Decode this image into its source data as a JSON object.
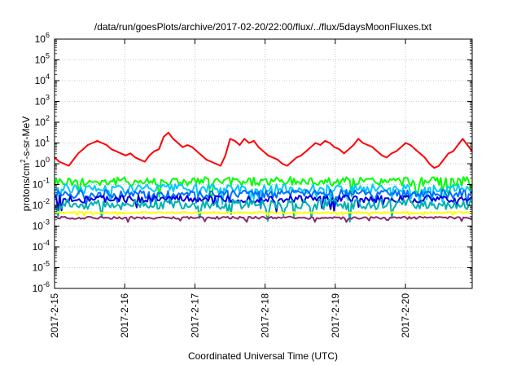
{
  "chart_data": {
    "type": "line",
    "title": "/data/run/goesPlots/archive/2017-02-20/22:00/flux/../flux/5daysMoonFluxes.txt",
    "xlabel": "Coordinated Universal Time (UTC)",
    "ylabel": {
      "pre": "protons/cm",
      "sup": "2",
      "post": "-s-sr-MeV"
    },
    "y_scale": "log",
    "ylim_exponents": [
      -6,
      6
    ],
    "y_ticks": [
      {
        "base": "10",
        "exp": "-6"
      },
      {
        "base": "10",
        "exp": "-5"
      },
      {
        "base": "10",
        "exp": "-4"
      },
      {
        "base": "10",
        "exp": "-3"
      },
      {
        "base": "10",
        "exp": "-2"
      },
      {
        "base": "10",
        "exp": "-1"
      },
      {
        "base": "10",
        "exp": "0"
      },
      {
        "base": "10",
        "exp": "1"
      },
      {
        "base": "10",
        "exp": "2"
      },
      {
        "base": "10",
        "exp": "3"
      },
      {
        "base": "10",
        "exp": "4"
      },
      {
        "base": "10",
        "exp": "5"
      },
      {
        "base": "10",
        "exp": "6"
      }
    ],
    "x_ticks": [
      "2017-2-15",
      "2017-2-16",
      "2017-2-17",
      "2017-2-18",
      "2017-2-19",
      "2017-2-20"
    ],
    "xlim_days": [
      0,
      5.95
    ],
    "grid": true,
    "legend": "none",
    "series": [
      {
        "color": "#ff0000",
        "log10_values": [
          0.3,
          0.1,
          0.0,
          -0.1,
          0.2,
          0.5,
          0.7,
          0.9,
          1.0,
          1.1,
          1.0,
          0.9,
          0.7,
          0.6,
          0.5,
          0.4,
          0.5,
          0.3,
          0.2,
          0.1,
          0.4,
          0.6,
          0.7,
          1.3,
          1.5,
          1.2,
          1.0,
          0.8,
          0.9,
          0.8,
          0.6,
          0.4,
          0.2,
          0.1,
          0.0,
          -0.1,
          0.4,
          1.2,
          1.1,
          0.9,
          1.2,
          1.0,
          1.1,
          0.8,
          0.6,
          0.4,
          0.3,
          0.2,
          0.0,
          -0.1,
          0.1,
          0.3,
          0.4,
          0.6,
          0.8,
          1.0,
          0.9,
          1.1,
          1.0,
          0.8,
          0.7,
          0.5,
          0.7,
          0.9,
          1.2,
          1.0,
          0.9,
          0.8,
          0.6,
          0.4,
          0.3,
          0.5,
          0.6,
          0.8,
          1.0,
          0.9,
          0.7,
          0.5,
          0.3,
          0.0,
          -0.2,
          -0.1,
          0.2,
          0.5,
          0.6,
          0.9,
          1.2,
          0.9,
          0.6
        ]
      },
      {
        "color": "#00ff00",
        "base": -0.85,
        "amp": 0.22
      },
      {
        "color": "#00c8ff",
        "base": -1.2,
        "amp": 0.22
      },
      {
        "color": "#0070ff",
        "base": -1.45,
        "amp": 0.2
      },
      {
        "color": "#0000e0",
        "base": -1.7,
        "amp": 0.18
      },
      {
        "color": "#00b0b0",
        "base": -1.95,
        "amp": 0.25
      },
      {
        "color": "#ffff00",
        "base": -2.35,
        "amp": 0.04
      },
      {
        "color": "#8b2a6a",
        "base": -2.6,
        "amp": 0.06
      }
    ]
  }
}
